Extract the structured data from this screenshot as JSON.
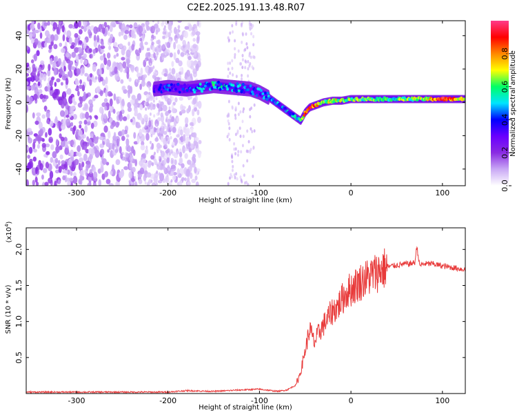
{
  "title": "C2E2.2025.191.13.48.R07",
  "chart_data": [
    {
      "type": "heatmap",
      "xlabel": "Height of straight line (km)",
      "ylabel": "Frequency (Hz)",
      "xlim": [
        -355,
        125
      ],
      "ylim": [
        -50,
        49
      ],
      "xticks": [
        -300,
        -200,
        -100,
        0,
        100
      ],
      "yticks": [
        -40,
        -20,
        0,
        20,
        40
      ],
      "colorbar": {
        "label": "Normalized spectral amplitude",
        "range": [
          0,
          1
        ],
        "ticks": [
          0.0,
          0.2,
          0.4,
          0.6,
          0.8
        ],
        "tick_labels": [
          "0.0",
          "0.2",
          "0.4",
          "0.6",
          "0.8"
        ],
        "colormap": [
          "#ffffff",
          "#c9a8f5",
          "#8a2be2",
          "#6a00ff",
          "#0000ff",
          "#00e5ff",
          "#00ff66",
          "#ffff00",
          "#ff8800",
          "#ff0000",
          "#ff3b8a"
        ]
      },
      "track": {
        "x": [
          -215,
          -200,
          -180,
          -165,
          -150,
          -130,
          -110,
          -100,
          -90,
          -80,
          -70,
          -60,
          -55,
          -50,
          -45,
          -40,
          -30,
          -20,
          -10,
          0,
          20,
          40,
          60,
          80,
          100,
          125
        ],
        "y": [
          8,
          9,
          8,
          9,
          10,
          9,
          8,
          6,
          3,
          -1,
          -5,
          -9,
          -11,
          -6,
          -3,
          -2,
          0,
          1,
          1,
          2,
          2,
          2,
          2,
          2,
          2,
          2
        ],
        "amplitude": [
          0.3,
          0.35,
          0.3,
          0.45,
          0.5,
          0.45,
          0.4,
          0.4,
          0.4,
          0.4,
          0.45,
          0.5,
          0.6,
          0.8,
          0.9,
          0.8,
          0.6,
          0.7,
          0.65,
          0.6,
          0.6,
          0.55,
          0.6,
          0.65,
          0.9,
          0.7
        ]
      },
      "noise_region": {
        "x_range": [
          -355,
          -165
        ],
        "y_range": [
          -50,
          49
        ]
      }
    },
    {
      "type": "line",
      "xlabel": "Height of straight line (km)",
      "ylabel": "SNR (10 * v/v)",
      "y_multiplier_label": "(x10",
      "y_multiplier_exp": "4",
      "y_multiplier_close": ")",
      "xlim": [
        -355,
        125
      ],
      "ylim": [
        0,
        2.3
      ],
      "xticks": [
        -300,
        -200,
        -100,
        0,
        100
      ],
      "yticks": [
        0.5,
        1.0,
        1.5,
        2.0
      ],
      "ytick_labels": [
        "0.5",
        "1.0",
        "1.5",
        "2.0"
      ],
      "color": "#e83a3a",
      "series": [
        {
          "x": [
            -355,
            -300,
            -250,
            -200,
            -180,
            -150,
            -120,
            -100,
            -80,
            -70,
            -60,
            -55,
            -50,
            -45,
            -40,
            -35,
            -30,
            -25,
            -20,
            -15,
            -10,
            -5,
            0,
            10,
            20,
            30,
            40,
            50,
            60,
            65,
            70,
            72,
            75,
            80,
            90,
            100,
            110,
            125
          ],
          "y": [
            0.02,
            0.02,
            0.02,
            0.02,
            0.04,
            0.03,
            0.05,
            0.06,
            0.03,
            0.05,
            0.12,
            0.3,
            0.6,
            0.9,
            0.7,
            0.85,
            0.95,
            1.05,
            1.15,
            1.2,
            1.3,
            1.4,
            1.45,
            1.55,
            1.62,
            1.7,
            1.76,
            1.78,
            1.8,
            1.8,
            1.82,
            2.05,
            1.78,
            1.8,
            1.8,
            1.77,
            1.75,
            1.72
          ]
        }
      ]
    }
  ]
}
